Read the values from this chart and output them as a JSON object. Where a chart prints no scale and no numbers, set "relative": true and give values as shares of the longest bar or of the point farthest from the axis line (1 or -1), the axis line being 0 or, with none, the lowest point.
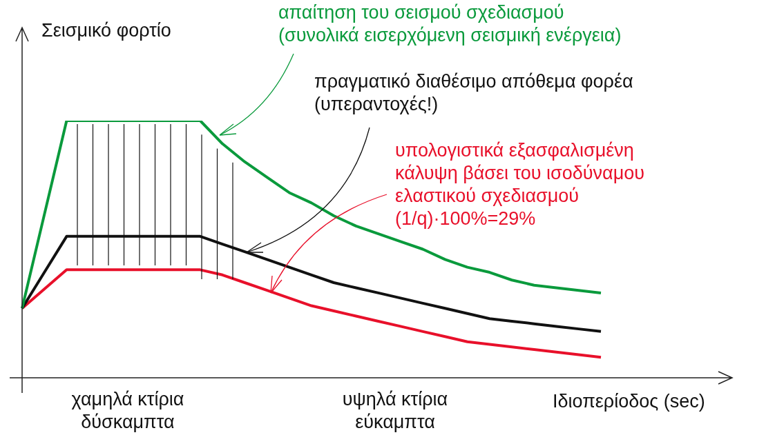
{
  "chart_data": {
    "type": "line",
    "relative": true,
    "ylabel": "Σεισμικό φορτίο",
    "xlabel": "Ιδιοπερίοδος (sec)",
    "legend": false,
    "marker": "none",
    "categories": [
      null,
      null,
      null,
      null,
      null,
      null,
      null,
      null,
      null,
      null,
      null,
      null,
      null,
      null,
      null,
      null,
      null,
      null,
      null,
      null,
      null,
      null,
      null,
      null,
      null,
      null,
      null
    ],
    "series": [
      {
        "color": "#0a9a3c",
        "values": [
          0.27,
          0.635,
          1,
          1,
          1,
          1,
          1,
          1,
          1,
          0.91,
          0.84,
          0.78,
          0.72,
          0.68,
          0.63,
          0.59,
          0.56,
          0.53,
          0.5,
          0.46,
          0.43,
          0.41,
          0.38,
          0.36,
          0.35,
          0.34,
          0.33
        ]
      },
      {
        "color": "#111111",
        "values": [
          0.27,
          0.41,
          0.55,
          0.55,
          0.55,
          0.55,
          0.55,
          0.55,
          0.55,
          0.52,
          0.49,
          0.46,
          0.43,
          0.4,
          0.37,
          0.35,
          0.33,
          0.31,
          0.29,
          0.27,
          0.25,
          0.23,
          0.22,
          0.21,
          0.2,
          0.19,
          0.18
        ]
      },
      {
        "color": "#e8102a",
        "values": [
          0.27,
          0.345,
          0.42,
          0.42,
          0.42,
          0.42,
          0.42,
          0.42,
          0.42,
          0.4,
          0.37,
          0.34,
          0.31,
          0.28,
          0.26,
          0.24,
          0.22,
          0.2,
          0.18,
          0.16,
          0.14,
          0.13,
          0.12,
          0.11,
          0.1,
          0.09,
          0.08
        ]
      }
    ],
    "annotations": [
      "απαίτηση του σεισμού σχεδιασμού\n(συνολικά εισερχόμενη σεισμική ενέργεια)",
      "πραγματικό διαθέσιμο απόθεμα φορέα\n(υπεραντοχές!)",
      "υπολογιστικά εξασφαλισμένη\nκάλυψη βάσει του ισοδύναμου\nελαστικού σχεδιασμού\n(1/q)·100%=29%",
      "χαμηλά κτίρια\nδύσκαμπτα",
      "υψηλά κτίρια\nεύκαμπτα"
    ]
  }
}
